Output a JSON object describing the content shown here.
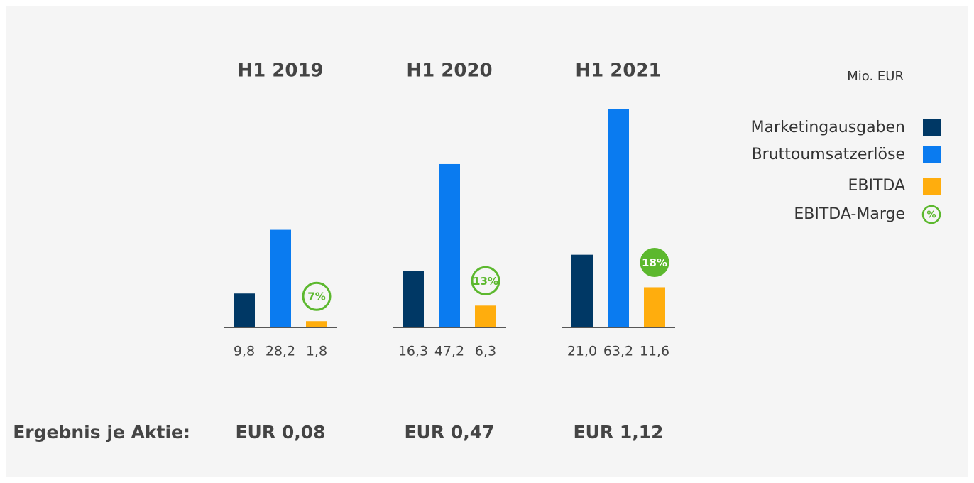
{
  "chart_data": {
    "type": "bar",
    "unit_label": "Mio. EUR",
    "categories": [
      "H1 2019",
      "H1 2020",
      "H1 2021"
    ],
    "series": [
      {
        "name": "Marketingausgaben",
        "color": "#003865",
        "values": [
          9.8,
          16.3,
          21.0
        ],
        "value_labels": [
          "9,8",
          "16,3",
          "21,0"
        ]
      },
      {
        "name": "Bruttoumsatzerlöse",
        "color": "#0a7bf0",
        "values": [
          28.2,
          47.2,
          63.2
        ],
        "value_labels": [
          "28,2",
          "47,2",
          "63,2"
        ]
      },
      {
        "name": "EBITDA",
        "color": "#ffad0d",
        "values": [
          1.8,
          6.3,
          11.6
        ],
        "value_labels": [
          "1,8",
          "6,3",
          "11,6"
        ]
      }
    ],
    "margin": {
      "name": "EBITDA-Marge",
      "color": "#5cb82e",
      "legend_symbol": "%",
      "values": [
        7,
        13,
        18
      ],
      "value_labels": [
        "7%",
        "13%",
        "18%"
      ]
    },
    "eps": {
      "label": "Ergebnis je Aktie:",
      "values": [
        0.08,
        0.47,
        1.12
      ],
      "value_labels": [
        "EUR 0,08",
        "EUR 0,47",
        "EUR 1,12"
      ]
    }
  }
}
